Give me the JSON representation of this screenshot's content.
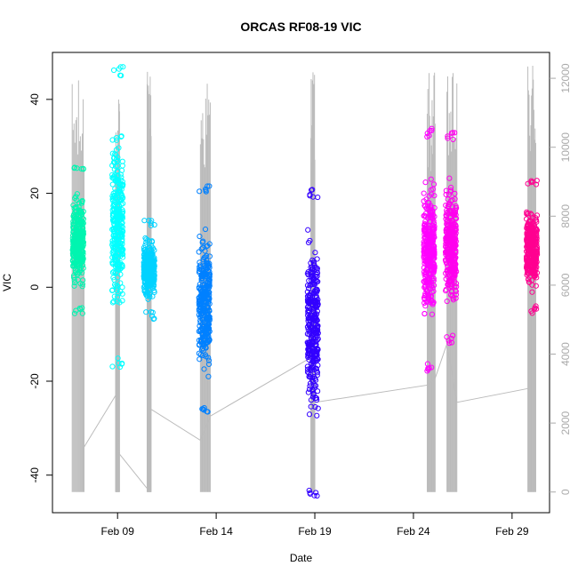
{
  "chart_data": {
    "type": "scatter",
    "title": "ORCAS RF08-19 VIC",
    "xlabel": "Date",
    "ylabel": "VIC",
    "x_ticks": [
      "Feb 09",
      "Feb 14",
      "Feb 19",
      "Feb 24",
      "Feb 29"
    ],
    "x_tick_days": [
      9,
      14,
      19,
      24,
      29
    ],
    "xlim_days": [
      5.7,
      30.9
    ],
    "ylim": [
      -48,
      50
    ],
    "y_ticks": [
      -40,
      -20,
      0,
      20,
      40
    ],
    "y2lim": [
      -600,
      12750
    ],
    "y2_ticks": [
      0,
      2000,
      4000,
      6000,
      8000,
      10000,
      12000
    ],
    "grid": false,
    "legend": "none",
    "series": [
      {
        "day": 7.0,
        "color": "#00f5b0",
        "min": -6,
        "max": 26,
        "center": 10
      },
      {
        "day": 9.0,
        "color": "#00ffff",
        "min": -17,
        "max": 47,
        "center": 12
      },
      {
        "day": 10.6,
        "color": "#00d2ff",
        "min": -7,
        "max": 15,
        "center": 4
      },
      {
        "day": 13.4,
        "color": "#0080ff",
        "min": -27,
        "max": 22,
        "center": -5
      },
      {
        "day": 18.9,
        "color": "#3300ff",
        "min": -45,
        "max": 21,
        "center": 0
      },
      {
        "day": 24.8,
        "color": "#ff00ff",
        "min": -18,
        "max": 34,
        "center": 8
      },
      {
        "day": 25.9,
        "color": "#ff00ee",
        "min": -12,
        "max": 33,
        "center": 6
      },
      {
        "day": 30.0,
        "color": "#ff0090",
        "min": -6,
        "max": 23,
        "center": 7
      }
    ],
    "altitude_track": {
      "color": "#bbbbbb",
      "flights": [
        {
          "start": 6.7,
          "end": 7.3,
          "peak": 12000
        },
        {
          "start": 8.9,
          "end": 9.1,
          "peak": 11500
        },
        {
          "start": 10.5,
          "end": 10.7,
          "peak": 12300
        },
        {
          "start": 13.2,
          "end": 13.7,
          "peak": 12100
        },
        {
          "start": 18.8,
          "end": 19.0,
          "peak": 12400
        },
        {
          "start": 24.7,
          "end": 25.1,
          "peak": 12200
        },
        {
          "start": 25.7,
          "end": 26.2,
          "peak": 12200
        },
        {
          "start": 29.8,
          "end": 30.2,
          "peak": 12700
        }
      ],
      "ferry": [
        [
          7.3,
          1300
        ],
        [
          8.9,
          2800
        ],
        [
          9.1,
          1100
        ],
        [
          10.5,
          100
        ],
        [
          10.7,
          2400
        ],
        [
          13.2,
          1500
        ],
        [
          13.7,
          2200
        ],
        [
          18.8,
          3900
        ],
        [
          19.0,
          2600
        ],
        [
          24.7,
          3100
        ],
        [
          25.1,
          3300
        ],
        [
          25.7,
          4300
        ],
        [
          26.2,
          2600
        ],
        [
          29.8,
          3000
        ]
      ]
    }
  }
}
